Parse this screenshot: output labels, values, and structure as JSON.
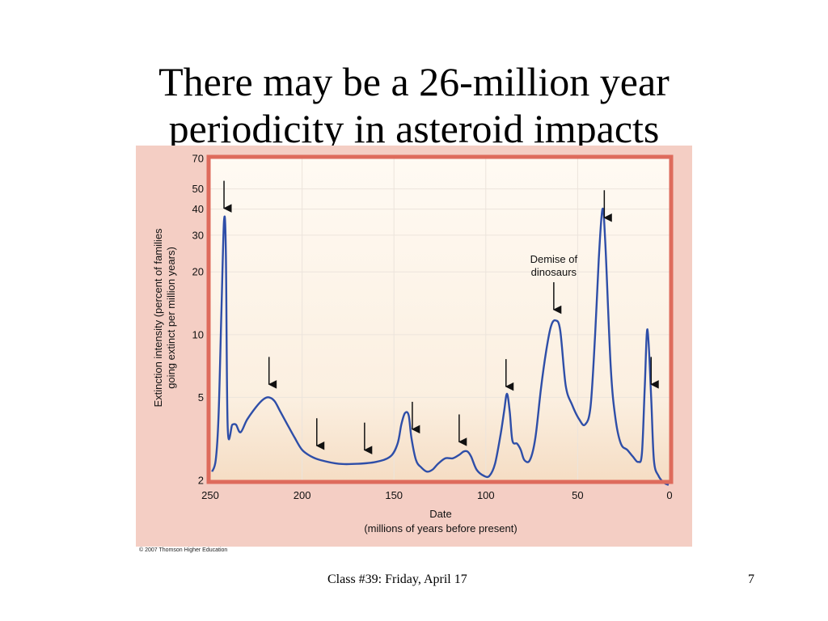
{
  "slide": {
    "title_line1": "There may be a 26-million year",
    "title_line2": "periodicity in asteroid impacts",
    "footer": "Class #39: Friday, April 17",
    "page_number": "7",
    "copyright": "© 2007 Thomson Higher Education"
  },
  "colors": {
    "line": "#2e4ea8",
    "frame": "#de6b5c",
    "figure_bg": "#f4cec4"
  },
  "chart_data": {
    "type": "line",
    "title": "",
    "xlabel_line1": "Date",
    "xlabel_line2": "(millions of years before present)",
    "ylabel_line1": "Extinction intensity (percent of families",
    "ylabel_line2": "going extinct per million years)",
    "x_reversed": true,
    "y_scale": "log",
    "xlim": [
      250,
      0
    ],
    "ylim": [
      2,
      70
    ],
    "x_ticks": [
      250,
      200,
      150,
      100,
      50,
      0
    ],
    "y_ticks": [
      2,
      5,
      10,
      20,
      30,
      40,
      50,
      70
    ],
    "grid": true,
    "series": [
      {
        "points": [
          [
            249,
            2.2
          ],
          [
            247,
            2.5
          ],
          [
            245.5,
            4
          ],
          [
            244,
            12
          ],
          [
            242.5,
            35
          ],
          [
            241.5,
            25
          ],
          [
            240.5,
            3.6
          ],
          [
            238,
            3.7
          ],
          [
            236,
            3.7
          ],
          [
            233.5,
            3.4
          ],
          [
            230,
            3.9
          ],
          [
            225,
            4.5
          ],
          [
            221,
            4.9
          ],
          [
            218,
            5.0
          ],
          [
            215,
            4.8
          ],
          [
            212,
            4.3
          ],
          [
            208,
            3.7
          ],
          [
            204,
            3.2
          ],
          [
            200,
            2.8
          ],
          [
            195,
            2.6
          ],
          [
            190,
            2.5
          ],
          [
            180,
            2.4
          ],
          [
            170,
            2.4
          ],
          [
            160,
            2.45
          ],
          [
            152,
            2.6
          ],
          [
            148,
            3.0
          ],
          [
            146,
            3.7
          ],
          [
            144,
            4.2
          ],
          [
            142,
            4.1
          ],
          [
            140.5,
            3.2
          ],
          [
            138,
            2.5
          ],
          [
            135,
            2.3
          ],
          [
            132,
            2.2
          ],
          [
            129,
            2.25
          ],
          [
            126,
            2.4
          ],
          [
            122,
            2.55
          ],
          [
            118,
            2.55
          ],
          [
            114.5,
            2.65
          ],
          [
            112,
            2.75
          ],
          [
            110,
            2.75
          ],
          [
            108,
            2.6
          ],
          [
            105,
            2.25
          ],
          [
            101,
            2.1
          ],
          [
            98,
            2.1
          ],
          [
            95,
            2.4
          ],
          [
            92,
            3.3
          ],
          [
            90,
            4.3
          ],
          [
            88.5,
            5.2
          ],
          [
            87,
            4.3
          ],
          [
            85.5,
            3.1
          ],
          [
            83,
            3.0
          ],
          [
            81,
            2.8
          ],
          [
            79,
            2.5
          ],
          [
            76,
            2.5
          ],
          [
            73,
            3.2
          ],
          [
            70,
            5.5
          ],
          [
            67,
            8.5
          ],
          [
            64.5,
            11
          ],
          [
            62,
            11.7
          ],
          [
            59.5,
            10.5
          ],
          [
            56.5,
            5.7
          ],
          [
            53,
            4.6
          ],
          [
            49,
            3.9
          ],
          [
            46,
            3.7
          ],
          [
            43,
            4.5
          ],
          [
            40.5,
            10
          ],
          [
            38.5,
            23
          ],
          [
            36.5,
            40
          ],
          [
            35,
            28
          ],
          [
            32,
            7
          ],
          [
            29.5,
            4
          ],
          [
            26.5,
            3.0
          ],
          [
            23,
            2.8
          ],
          [
            20,
            2.6
          ],
          [
            17,
            2.45
          ],
          [
            15,
            2.7
          ],
          [
            13.5,
            5.5
          ],
          [
            12,
            10.6
          ],
          [
            10,
            5
          ],
          [
            8.5,
            2.5
          ],
          [
            6,
            2.1
          ],
          [
            3,
            1.95
          ],
          [
            0.5,
            1.9
          ]
        ]
      }
    ],
    "annotations": [
      {
        "text_line1": "Demise of",
        "text_line2": "dinosaurs",
        "x": 63
      }
    ],
    "arrows_at_x": [
      242.5,
      218,
      192,
      166,
      140,
      114.5,
      89,
      63,
      35.5,
      10
    ]
  }
}
